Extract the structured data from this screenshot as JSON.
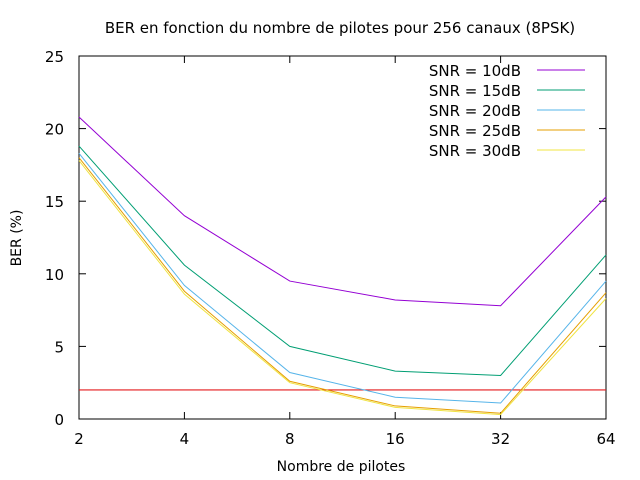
{
  "chart_data": {
    "type": "line",
    "title": "BER en fonction du nombre de pilotes pour 256 canaux (8PSK)",
    "xlabel": "Nombre de pilotes",
    "ylabel": "BER (%)",
    "x_scale": "log2",
    "x": [
      2,
      4,
      8,
      16,
      32,
      64
    ],
    "x_tick_labels": [
      "2",
      "4",
      "8",
      "16",
      "32",
      "64"
    ],
    "xlim": [
      2,
      64
    ],
    "ylim": [
      0,
      25
    ],
    "y_ticks": [
      0,
      5,
      10,
      15,
      20,
      25
    ],
    "grid": false,
    "legend_position": "top-right",
    "series": [
      {
        "name": "SNR = 10dB",
        "color": "#9400d3",
        "values": [
          20.8,
          14.0,
          9.5,
          8.2,
          7.8,
          15.3
        ]
      },
      {
        "name": "SNR = 15dB",
        "color": "#009e73",
        "values": [
          18.8,
          10.6,
          5.0,
          3.3,
          3.0,
          11.3
        ]
      },
      {
        "name": "SNR = 20dB",
        "color": "#56b4e9",
        "values": [
          18.3,
          9.2,
          3.2,
          1.5,
          1.1,
          9.5
        ]
      },
      {
        "name": "SNR = 25dB",
        "color": "#e69f00",
        "values": [
          18.0,
          8.8,
          2.6,
          0.9,
          0.4,
          8.7
        ]
      },
      {
        "name": "SNR = 30dB",
        "color": "#f0e442",
        "values": [
          17.8,
          8.6,
          2.5,
          0.8,
          0.3,
          8.3
        ]
      }
    ],
    "reference_line": {
      "y": 2.0,
      "color": "#e41a1c"
    }
  }
}
